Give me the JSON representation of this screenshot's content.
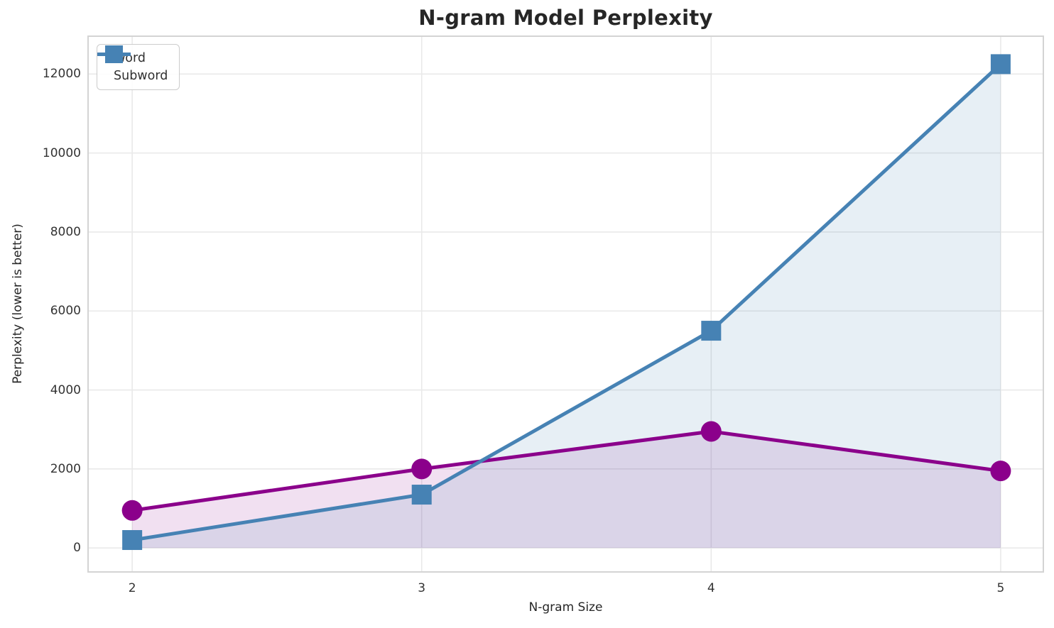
{
  "chart_data": {
    "type": "line",
    "title": "N-gram Model Perplexity",
    "xlabel": "N-gram Size",
    "ylabel": "Perplexity (lower is better)",
    "x": [
      2,
      3,
      4,
      5
    ],
    "x_tick_labels": [
      "2",
      "3",
      "4",
      "5"
    ],
    "y_ticks": [
      0,
      2000,
      4000,
      6000,
      8000,
      10000,
      12000
    ],
    "y_tick_labels": [
      "0",
      "2000",
      "4000",
      "6000",
      "8000",
      "10000",
      "12000"
    ],
    "series": [
      {
        "name": "Word",
        "marker": "circle",
        "color": "#8B008B",
        "fill_color": "rgba(139,0,139,0.12)",
        "values": [
          950,
          2000,
          2950,
          1950
        ]
      },
      {
        "name": "Subword",
        "marker": "square",
        "color": "#4682B4",
        "fill_color": "rgba(70,130,180,0.13)",
        "values": [
          200,
          1350,
          5500,
          12250
        ]
      }
    ],
    "xlim": [
      1.85,
      5.145
    ],
    "ylim": [
      -590,
      12940
    ],
    "grid": true,
    "grid_color": "#e9e9e9",
    "spine_color": "#d4d4d4",
    "area_fill": true,
    "area_fill_baseline": 0,
    "legend_position": "upper-left",
    "line_width": 5,
    "marker_size": 29
  }
}
